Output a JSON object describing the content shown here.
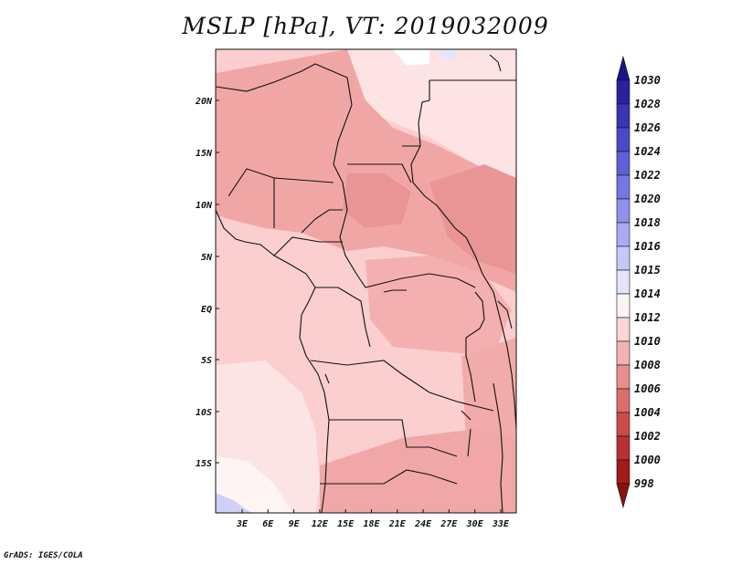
{
  "title": "MSLP [hPa], VT: 2019032009",
  "credit": "GrADS: IGES/COLA",
  "map": {
    "lon_ticks": [
      "3E",
      "6E",
      "9E",
      "12E",
      "15E",
      "18E",
      "21E",
      "24E",
      "27E",
      "30E",
      "33E"
    ],
    "lat_ticks": [
      "20N",
      "15N",
      "10N",
      "5N",
      "EQ",
      "5S",
      "10S",
      "15S"
    ]
  },
  "colorbar": {
    "levels": [
      "1030",
      "1028",
      "1026",
      "1024",
      "1022",
      "1020",
      "1018",
      "1016",
      "1015",
      "1014",
      "1012",
      "1010",
      "1008",
      "1006",
      "1004",
      "1002",
      "1000",
      "998"
    ],
    "colors": [
      "#1c1585",
      "#2a21a0",
      "#3a35b6",
      "#4a4ac8",
      "#5f5fd6",
      "#7676e2",
      "#8f8fec",
      "#aaaaf3",
      "#c8c8f8",
      "#e4e4fb",
      "#fdf3f3",
      "#fbd6d6",
      "#f3b3b3",
      "#e88e8e",
      "#dd6c6c",
      "#cc4a4a",
      "#b63232",
      "#a01c1c",
      "#8a1010"
    ]
  }
}
